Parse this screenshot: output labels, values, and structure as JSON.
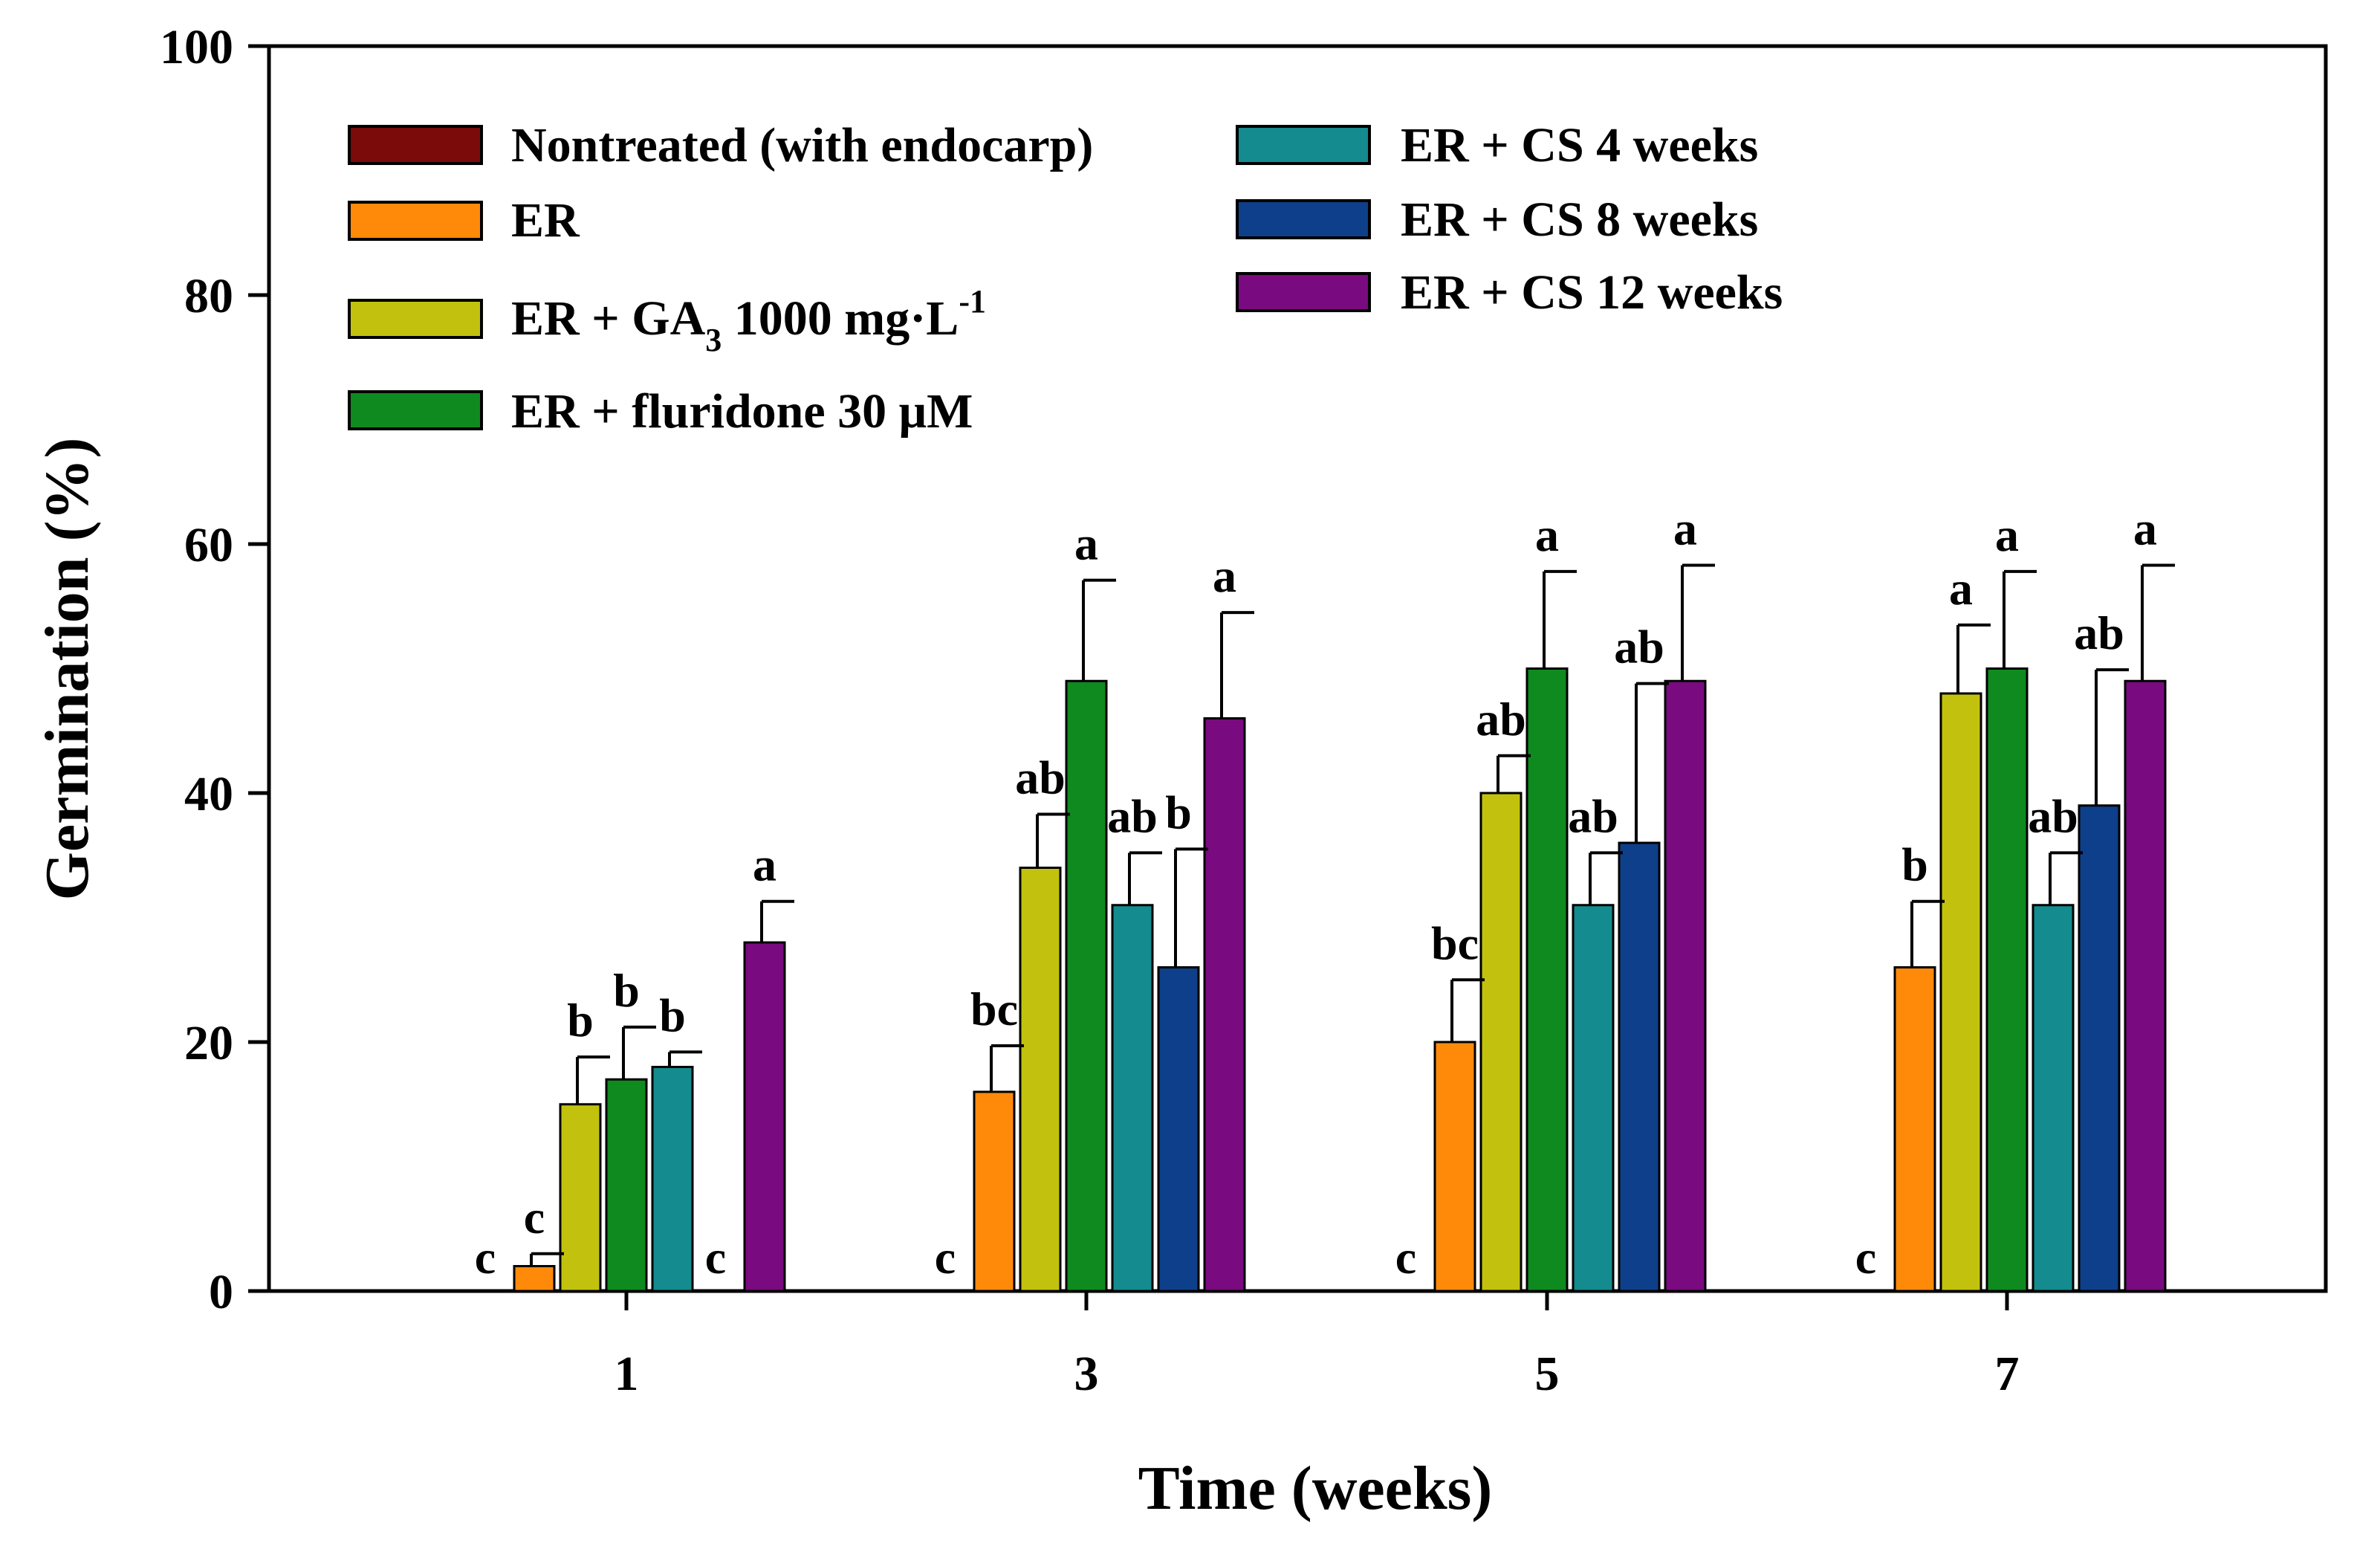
{
  "chart_data": {
    "type": "bar",
    "title": "",
    "xlabel": "Time (weeks)",
    "ylabel": "Germination (%)",
    "ylim": [
      0,
      100
    ],
    "yticks": [
      "0",
      "20",
      "40",
      "60",
      "80",
      "100"
    ],
    "categories": [
      "1",
      "3",
      "5",
      "7"
    ],
    "legend_position": "top-left",
    "series": [
      {
        "name": "Nontreated (with endocarp)",
        "color": "#7b0a0a",
        "values": [
          0,
          0,
          0,
          0
        ],
        "errors": [
          0,
          0,
          0,
          0
        ],
        "letters": [
          "c",
          "c",
          "c",
          "c"
        ]
      },
      {
        "name": "ER",
        "color": "#ff8a0a",
        "values": [
          2,
          16,
          20,
          26
        ],
        "errors": [
          1,
          3.7,
          5,
          5.3
        ],
        "letters": [
          "c",
          "bc",
          "bc",
          "b"
        ]
      },
      {
        "name": "ER + GA3 1000 mg·L-1",
        "color": "#c2c20e",
        "values": [
          15,
          34,
          40,
          48
        ],
        "errors": [
          3.8,
          4.3,
          3,
          5.5
        ],
        "letters": [
          "b",
          "ab",
          "ab",
          "a"
        ]
      },
      {
        "name": "ER + fluridone 30 μM",
        "color": "#0f8a1f",
        "values": [
          17,
          49,
          50,
          50
        ],
        "errors": [
          4.2,
          8.1,
          7.8,
          7.8
        ],
        "letters": [
          "b",
          "a",
          "a",
          "a"
        ]
      },
      {
        "name": "ER + CS 4 weeks",
        "color": "#138b8f",
        "values": [
          18,
          31,
          31,
          31
        ],
        "errors": [
          1.2,
          4.2,
          4.2,
          4.2
        ],
        "letters": [
          "b",
          "ab",
          "ab",
          "ab"
        ]
      },
      {
        "name": "ER + CS 8 weeks",
        "color": "#0e3f8a",
        "values": [
          0,
          26,
          36,
          39
        ],
        "errors": [
          0,
          9.5,
          12.8,
          10.9
        ],
        "letters": [
          "c",
          "b",
          "ab",
          "ab"
        ]
      },
      {
        "name": "ER + CS 12 weeks",
        "color": "#7a0a80",
        "values": [
          28,
          46,
          49,
          49
        ],
        "errors": [
          3.3,
          8.5,
          9.3,
          9.3
        ],
        "letters": [
          "a",
          "a",
          "a",
          "a"
        ]
      }
    ]
  },
  "legend": {
    "entries": [
      {
        "text": "Nontreated (with endocarp)"
      },
      {
        "text": "ER"
      },
      {
        "base": "ER + GA",
        "sub": "3",
        "mid": " 1000 mg·L",
        "sup": "-1"
      },
      {
        "text": "ER + fluridone 30 μM"
      },
      {
        "text": "ER + CS 4 weeks"
      },
      {
        "text": "ER + CS 8 weeks"
      },
      {
        "text": "ER + CS 12 weeks"
      }
    ]
  }
}
